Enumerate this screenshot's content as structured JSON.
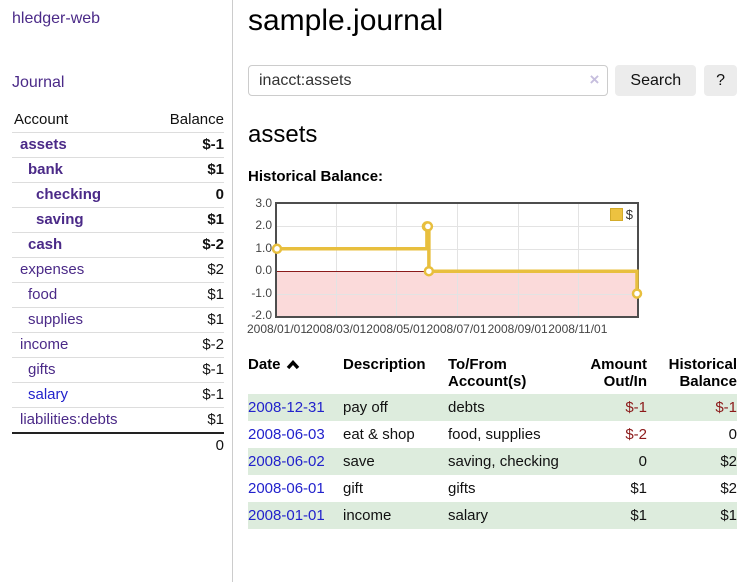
{
  "sidebar": {
    "brand": "hledger-web",
    "nav": {
      "journal": "Journal"
    },
    "accounts_table": {
      "headers": {
        "account": "Account",
        "balance": "Balance"
      },
      "rows": [
        {
          "name": "assets",
          "depth": 1,
          "bold": true,
          "balance": "$-1",
          "neg": "strong"
        },
        {
          "name": "bank",
          "depth": 2,
          "bold": true,
          "balance": "$1"
        },
        {
          "name": "checking",
          "depth": 3,
          "bold": true,
          "balance": "0"
        },
        {
          "name": "saving",
          "depth": 3,
          "bold": true,
          "balance": "$1"
        },
        {
          "name": "cash",
          "depth": 2,
          "bold": true,
          "balance": "$-2",
          "neg": "strong"
        },
        {
          "name": "expenses",
          "depth": 1,
          "bold": false,
          "balance": "$2"
        },
        {
          "name": "food",
          "depth": 2,
          "bold": false,
          "balance": "$1"
        },
        {
          "name": "supplies",
          "depth": 2,
          "bold": false,
          "balance": "$1"
        },
        {
          "name": "income",
          "depth": 1,
          "bold": false,
          "balance": "$-2",
          "neg": "soft"
        },
        {
          "name": "gifts",
          "depth": 2,
          "bold": false,
          "balance": "$-1",
          "neg": "soft"
        },
        {
          "name": "salary",
          "depth": 2,
          "bold": false,
          "balance": "$-1",
          "neg": "soft",
          "blue": true
        },
        {
          "name": "liabilities:debts",
          "depth": 1,
          "bold": false,
          "balance": "$1"
        }
      ],
      "total": "0"
    }
  },
  "header": {
    "title": "sample.journal"
  },
  "search": {
    "value": "inacct:assets",
    "clear_icon": "×",
    "button": "Search",
    "help_button": "?"
  },
  "account_page": {
    "title": "assets",
    "chart_label": "Historical Balance:"
  },
  "chart_data": {
    "type": "line",
    "step": true,
    "title": "Historical Balance",
    "legend": "$",
    "legend_position": "top-right",
    "series": [
      {
        "name": "$",
        "color": "#e8bf3e",
        "points": [
          [
            "2008-01-01",
            1
          ],
          [
            "2008-06-01",
            2
          ],
          [
            "2008-06-02",
            2
          ],
          [
            "2008-06-03",
            0
          ],
          [
            "2008-12-31",
            -1
          ]
        ]
      }
    ],
    "xlim": [
      "2008-01-01",
      "2008-12-31"
    ],
    "ylim": [
      -2,
      3
    ],
    "x_ticks": [
      "2008/01/01",
      "2008/03/01",
      "2008/05/01",
      "2008/07/01",
      "2008/09/01",
      "2008/11/01"
    ],
    "y_ticks": [
      3.0,
      2.0,
      1.0,
      0.0,
      -1.0,
      -2.0
    ],
    "grid": true,
    "negative_region_color": "#fbdada",
    "zero_line_color": "#8b1a1a"
  },
  "register_table": {
    "headers": {
      "date": "Date",
      "description": "Description",
      "accounts": "To/From Account(s)",
      "amount": "Amount Out/In",
      "balance": "Historical Balance"
    },
    "sort": "date-ascending",
    "rows": [
      {
        "date": "2008-12-31",
        "description": "pay off",
        "accounts": "debts",
        "amount": "$-1",
        "amount_neg": true,
        "balance": "$-1",
        "balance_neg": true
      },
      {
        "date": "2008-06-03",
        "description": "eat & shop",
        "accounts": "food, supplies",
        "amount": "$-2",
        "amount_neg": true,
        "balance": "0",
        "balance_neg": false
      },
      {
        "date": "2008-06-02",
        "description": "save",
        "accounts": "saving, checking",
        "amount": "0",
        "amount_neg": false,
        "balance": "$2",
        "balance_neg": false
      },
      {
        "date": "2008-06-01",
        "description": "gift",
        "accounts": "gifts",
        "amount": "$1",
        "amount_neg": false,
        "balance": "$2",
        "balance_neg": false
      },
      {
        "date": "2008-01-01",
        "description": "income",
        "accounts": "salary",
        "amount": "$1",
        "amount_neg": false,
        "balance": "$1",
        "balance_neg": false
      }
    ]
  }
}
